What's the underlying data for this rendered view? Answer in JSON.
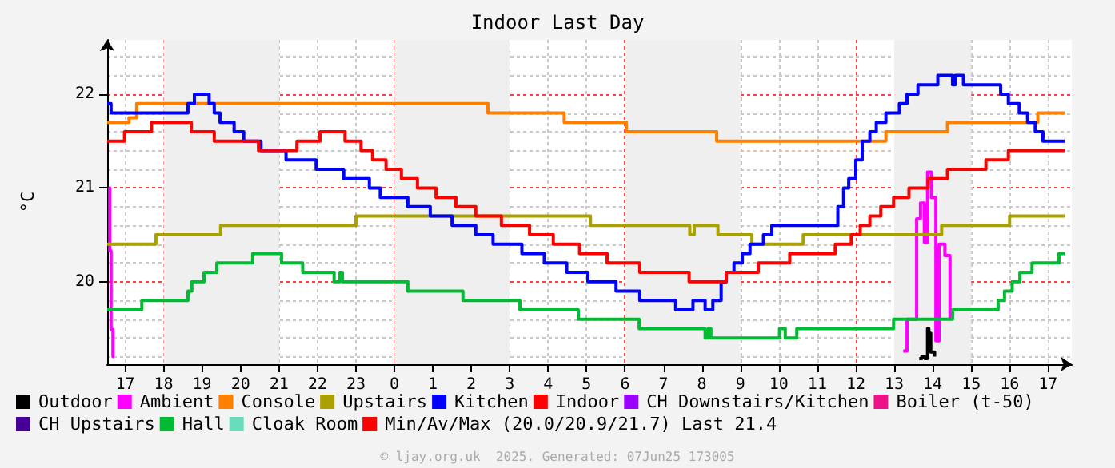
{
  "chart_data": {
    "type": "step",
    "title": "Indoor Last Day",
    "ylabel": "°C",
    "xlim": [
      "2025-06-06T16:32",
      "2025-06-07T17:37"
    ],
    "ylim": [
      19.12,
      22.58
    ],
    "yticks": [
      20,
      21,
      22
    ],
    "xticks": [
      {
        "value": "2025-06-06T17:00",
        "label": "17"
      },
      {
        "value": "2025-06-06T18:00",
        "label": "18"
      },
      {
        "value": "2025-06-06T19:00",
        "label": "19"
      },
      {
        "value": "2025-06-06T20:00",
        "label": "20"
      },
      {
        "value": "2025-06-06T21:00",
        "label": "21"
      },
      {
        "value": "2025-06-06T22:00",
        "label": "22"
      },
      {
        "value": "2025-06-06T23:00",
        "label": "23"
      },
      {
        "value": "2025-06-07T00:00",
        "label": "0"
      },
      {
        "value": "2025-06-07T01:00",
        "label": "1"
      },
      {
        "value": "2025-06-07T02:00",
        "label": "2"
      },
      {
        "value": "2025-06-07T03:00",
        "label": "3"
      },
      {
        "value": "2025-06-07T04:00",
        "label": "4"
      },
      {
        "value": "2025-06-07T05:00",
        "label": "5"
      },
      {
        "value": "2025-06-07T06:00",
        "label": "6"
      },
      {
        "value": "2025-06-07T07:00",
        "label": "7"
      },
      {
        "value": "2025-06-07T08:00",
        "label": "8"
      },
      {
        "value": "2025-06-07T09:00",
        "label": "9"
      },
      {
        "value": "2025-06-07T10:00",
        "label": "10"
      },
      {
        "value": "2025-06-07T11:00",
        "label": "11"
      },
      {
        "value": "2025-06-07T12:00",
        "label": "12"
      },
      {
        "value": "2025-06-07T13:00",
        "label": "13"
      },
      {
        "value": "2025-06-07T14:00",
        "label": "14"
      },
      {
        "value": "2025-06-07T15:00",
        "label": "15"
      },
      {
        "value": "2025-06-07T16:00",
        "label": "16"
      },
      {
        "value": "2025-06-07T17:00",
        "label": "17"
      }
    ],
    "grid": true,
    "legend": "bottom",
    "marker": "none",
    "line_style": "solid",
    "bands": [
      {
        "axis": "x",
        "from": "2025-06-06T18:00",
        "to": "2025-06-06T21:00",
        "color": "#efefef"
      },
      {
        "axis": "x",
        "from": "2025-06-07T00:00",
        "to": "2025-06-07T03:00",
        "color": "#efefef"
      },
      {
        "axis": "x",
        "from": "2025-06-07T06:00",
        "to": "2025-06-07T09:00",
        "color": "#efefef"
      },
      {
        "axis": "x",
        "from": "2025-06-07T13:00",
        "to": "2025-06-07T15:00",
        "color": "#efefef"
      }
    ],
    "annotations": [
      "© ljay.org.uk  2025. Generated: 07Jun25 173005"
    ],
    "series": [
      {
        "name": "Outdoor",
        "color": "#000000",
        "x": [
          "2025-06-07T13:39",
          "2025-06-07T13:43",
          "2025-06-07T13:48",
          "2025-06-07T13:52",
          "2025-06-07T13:54",
          "2025-06-07T13:57",
          "2025-06-07T14:03"
        ],
        "values": [
          19.18,
          19.2,
          19.18,
          19.5,
          19.45,
          19.25,
          19.2
        ]
      },
      {
        "name": "Ambient",
        "color": "#ff00ff",
        "x": [
          "2025-06-06T16:34",
          "2025-06-06T16:36",
          "2025-06-06T16:38",
          "2025-06-06T16:41",
          "2025-06-06T16:43",
          "2025-06-07T13:14",
          "2025-06-07T13:20",
          "2025-06-07T13:27",
          "2025-06-07T13:35",
          "2025-06-07T13:41",
          "2025-06-07T13:47",
          "2025-06-07T13:52",
          "2025-06-07T13:58",
          "2025-06-07T14:05",
          "2025-06-07T14:10",
          "2025-06-07T14:19",
          "2025-06-07T14:27"
        ],
        "values": [
          21.0,
          20.33,
          19.49,
          19.2,
          null,
          19.26,
          19.6,
          19.6,
          20.67,
          20.84,
          20.42,
          21.17,
          20.9,
          19.37,
          20.4,
          20.28,
          19.6
        ]
      },
      {
        "name": "Console",
        "color": "#ff8000",
        "x": [
          "2025-06-06T16:32",
          "2025-06-06T17:06",
          "2025-06-06T17:18",
          "2025-06-07T02:26",
          "2025-06-07T04:25",
          "2025-06-07T06:02",
          "2025-06-07T08:23",
          "2025-06-07T12:47",
          "2025-06-07T14:23",
          "2025-06-07T16:44",
          "2025-06-07T17:26"
        ],
        "values": [
          21.7,
          21.75,
          21.9,
          21.8,
          21.7,
          21.6,
          21.5,
          21.6,
          21.7,
          21.8,
          21.8
        ]
      },
      {
        "name": "Upstairs",
        "color": "#aaa000",
        "x": [
          "2025-06-06T16:32",
          "2025-06-06T17:48",
          "2025-06-06T19:29",
          "2025-06-06T23:00",
          "2025-06-07T05:06",
          "2025-06-07T07:41",
          "2025-06-07T07:48",
          "2025-06-07T08:25",
          "2025-06-07T09:18",
          "2025-06-07T10:38",
          "2025-06-07T14:14",
          "2025-06-07T16:00",
          "2025-06-07T17:26"
        ],
        "values": [
          20.4,
          20.5,
          20.6,
          20.7,
          20.6,
          20.5,
          20.6,
          20.5,
          20.4,
          20.5,
          20.6,
          20.7,
          20.7
        ]
      },
      {
        "name": "Kitchen",
        "color": "#0000ff",
        "x": [
          "2025-06-06T16:32",
          "2025-06-06T16:38",
          "2025-06-06T18:38",
          "2025-06-06T18:48",
          "2025-06-06T19:11",
          "2025-06-06T19:19",
          "2025-06-06T19:28",
          "2025-06-06T19:50",
          "2025-06-06T20:05",
          "2025-06-06T20:32",
          "2025-06-06T21:11",
          "2025-06-06T21:58",
          "2025-06-06T22:41",
          "2025-06-06T23:21",
          "2025-06-06T23:38",
          "2025-06-07T00:21",
          "2025-06-07T00:56",
          "2025-06-07T01:30",
          "2025-06-07T02:07",
          "2025-06-07T02:34",
          "2025-06-07T03:19",
          "2025-06-07T03:54",
          "2025-06-07T04:29",
          "2025-06-07T05:02",
          "2025-06-07T05:46",
          "2025-06-07T06:23",
          "2025-06-07T07:19",
          "2025-06-07T07:46",
          "2025-06-07T08:05",
          "2025-06-07T08:17",
          "2025-06-07T08:30",
          "2025-06-07T08:38",
          "2025-06-07T08:50",
          "2025-06-07T09:03",
          "2025-06-07T09:15",
          "2025-06-07T09:36",
          "2025-06-07T09:49",
          "2025-06-07T11:32",
          "2025-06-07T11:41",
          "2025-06-07T11:49",
          "2025-06-07T12:00",
          "2025-06-07T12:10",
          "2025-06-07T12:22",
          "2025-06-07T12:32",
          "2025-06-07T12:47",
          "2025-06-07T13:08",
          "2025-06-07T13:20",
          "2025-06-07T13:37",
          "2025-06-07T14:08",
          "2025-06-07T14:31",
          "2025-06-07T14:35",
          "2025-06-07T14:48",
          "2025-06-07T15:46",
          "2025-06-07T15:58",
          "2025-06-07T16:15",
          "2025-06-07T16:28",
          "2025-06-07T16:40",
          "2025-06-07T16:52",
          "2025-06-07T17:17",
          "2025-06-07T17:26"
        ],
        "values": [
          21.9,
          21.8,
          21.9,
          22.0,
          21.9,
          21.8,
          21.7,
          21.6,
          21.5,
          21.4,
          21.3,
          21.2,
          21.1,
          21.0,
          20.9,
          20.8,
          20.7,
          20.6,
          20.5,
          20.4,
          20.3,
          20.2,
          20.1,
          20.0,
          19.9,
          19.8,
          19.7,
          19.8,
          19.7,
          19.8,
          20.0,
          20.1,
          20.2,
          20.3,
          20.4,
          20.5,
          20.6,
          20.8,
          21.0,
          21.1,
          21.3,
          21.5,
          21.6,
          21.7,
          21.8,
          21.9,
          22.0,
          22.1,
          22.2,
          22.1,
          22.2,
          22.1,
          22.0,
          21.9,
          21.8,
          21.7,
          21.6,
          21.5,
          21.5,
          21.5
        ]
      },
      {
        "name": "Indoor",
        "color": "#ff0000",
        "x": [
          "2025-06-06T16:32",
          "2025-06-06T16:59",
          "2025-06-06T17:41",
          "2025-06-06T18:43",
          "2025-06-06T19:19",
          "2025-06-06T20:28",
          "2025-06-06T21:28",
          "2025-06-06T22:04",
          "2025-06-06T22:43",
          "2025-06-06T23:08",
          "2025-06-06T23:26",
          "2025-06-06T23:47",
          "2025-06-07T00:11",
          "2025-06-07T00:36",
          "2025-06-07T01:05",
          "2025-06-07T01:36",
          "2025-06-07T02:07",
          "2025-06-07T02:47",
          "2025-06-07T03:31",
          "2025-06-07T04:08",
          "2025-06-07T04:49",
          "2025-06-07T05:32",
          "2025-06-07T06:23",
          "2025-06-07T07:40",
          "2025-06-07T08:38",
          "2025-06-07T09:28",
          "2025-06-07T10:17",
          "2025-06-07T11:28",
          "2025-06-07T11:53",
          "2025-06-07T12:07",
          "2025-06-07T12:22",
          "2025-06-07T12:39",
          "2025-06-07T12:59",
          "2025-06-07T13:23",
          "2025-06-07T13:53",
          "2025-06-07T14:23",
          "2025-06-07T15:23",
          "2025-06-07T15:58",
          "2025-06-07T17:26"
        ],
        "values": [
          21.5,
          21.6,
          21.7,
          21.6,
          21.5,
          21.4,
          21.5,
          21.6,
          21.5,
          21.4,
          21.3,
          21.2,
          21.1,
          21.0,
          20.9,
          20.8,
          20.7,
          20.6,
          20.5,
          20.4,
          20.3,
          20.2,
          20.1,
          20.0,
          20.1,
          20.2,
          20.3,
          20.4,
          20.5,
          20.6,
          20.7,
          20.8,
          20.9,
          21.0,
          21.1,
          21.2,
          21.3,
          21.4,
          21.4
        ]
      },
      {
        "name": "CH Downstairs/Kitchen",
        "color": "#9900ff"
      },
      {
        "name": "Boiler (t-50)",
        "color": "#ee1188"
      },
      {
        "name": "CH Upstairs",
        "color": "#440099"
      },
      {
        "name": "Hall",
        "color": "#00bb33",
        "x": [
          "2025-06-06T16:32",
          "2025-06-06T17:26",
          "2025-06-06T18:38",
          "2025-06-06T18:44",
          "2025-06-06T19:03",
          "2025-06-06T19:23",
          "2025-06-06T20:19",
          "2025-06-06T21:04",
          "2025-06-06T21:37",
          "2025-06-06T22:26",
          "2025-06-06T22:35",
          "2025-06-06T22:39",
          "2025-06-07T00:21",
          "2025-06-07T01:47",
          "2025-06-07T03:16",
          "2025-06-07T04:47",
          "2025-06-07T06:22",
          "2025-06-07T08:05",
          "2025-06-07T08:10",
          "2025-06-07T08:14",
          "2025-06-07T10:01",
          "2025-06-07T10:10",
          "2025-06-07T10:28",
          "2025-06-07T12:59",
          "2025-06-07T14:31",
          "2025-06-07T15:42",
          "2025-06-07T15:52",
          "2025-06-07T16:04",
          "2025-06-07T16:16",
          "2025-06-07T16:35",
          "2025-06-07T17:17",
          "2025-06-07T17:26"
        ],
        "values": [
          19.7,
          19.8,
          19.9,
          20.0,
          20.1,
          20.2,
          20.3,
          20.2,
          20.1,
          20.0,
          20.1,
          20.0,
          19.9,
          19.8,
          19.7,
          19.6,
          19.5,
          19.4,
          19.5,
          19.4,
          19.5,
          19.4,
          19.5,
          19.6,
          19.7,
          19.8,
          19.9,
          20.0,
          20.1,
          20.2,
          20.3,
          20.3
        ]
      },
      {
        "name": "Cloak Room",
        "color": "#66ddbb"
      },
      {
        "name": "Min/Av/Max (20.0/20.9/21.7) Last 21.4",
        "color": "#ff0000"
      }
    ]
  }
}
